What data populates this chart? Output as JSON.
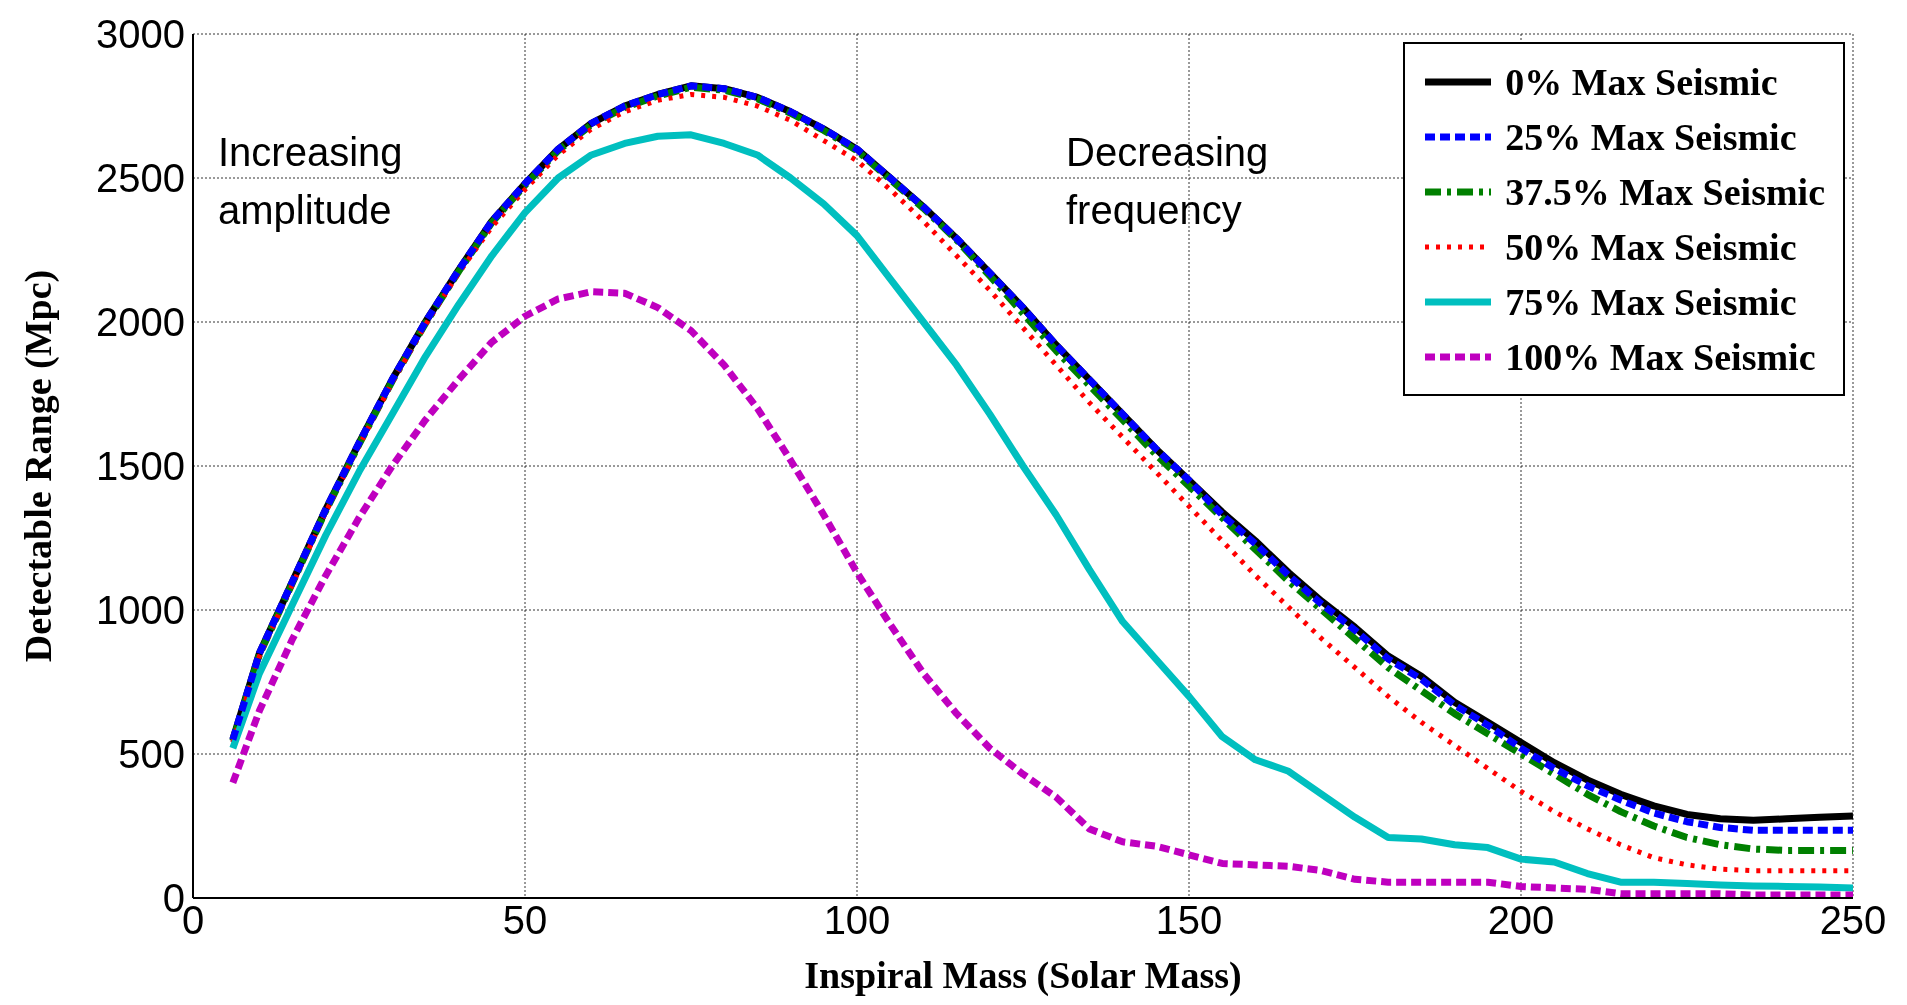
{
  "chart_data": {
    "type": "line",
    "xlabel": "Inspiral Mass (Solar Mass)",
    "ylabel": "Detectable Range (Mpc)",
    "annotations": [
      "Increasing amplitude",
      "Decreasing frequency"
    ],
    "x": [
      6,
      10,
      15,
      20,
      25,
      30,
      35,
      40,
      45,
      50,
      55,
      60,
      65,
      70,
      75,
      80,
      85,
      90,
      95,
      100,
      105,
      110,
      115,
      120,
      125,
      130,
      135,
      140,
      145,
      150,
      155,
      160,
      165,
      170,
      175,
      180,
      185,
      190,
      195,
      200,
      205,
      210,
      215,
      220,
      225,
      230,
      235,
      240,
      245,
      250
    ],
    "xlim": [
      0,
      250
    ],
    "xticks": [
      0,
      50,
      100,
      150,
      200,
      250
    ],
    "ylim": [
      0,
      3000
    ],
    "yticks": [
      0,
      500,
      1000,
      1500,
      2000,
      2500,
      3000
    ],
    "grid": true,
    "legend": "top right",
    "marker": "none",
    "series": [
      {
        "name": "0% Max Seismic",
        "color": "#000000",
        "line_style": "solid",
        "values": [
          550,
          850,
          1100,
          1350,
          1580,
          1800,
          2000,
          2180,
          2350,
          2480,
          2600,
          2690,
          2750,
          2790,
          2820,
          2810,
          2780,
          2730,
          2670,
          2600,
          2500,
          2400,
          2290,
          2170,
          2050,
          1920,
          1800,
          1680,
          1560,
          1450,
          1340,
          1240,
          1130,
          1030,
          940,
          840,
          770,
          680,
          610,
          540,
          470,
          410,
          360,
          320,
          290,
          275,
          270,
          275,
          280,
          285
        ]
      },
      {
        "name": "25% Max Seismic",
        "color": "#0000ff",
        "line_style": "dashed",
        "values": [
          550,
          850,
          1100,
          1350,
          1580,
          1800,
          2000,
          2180,
          2350,
          2480,
          2600,
          2690,
          2750,
          2790,
          2820,
          2810,
          2780,
          2730,
          2670,
          2600,
          2500,
          2400,
          2290,
          2170,
          2050,
          1920,
          1800,
          1680,
          1560,
          1450,
          1330,
          1230,
          1120,
          1020,
          930,
          830,
          760,
          670,
          600,
          520,
          450,
          390,
          340,
          295,
          265,
          245,
          235,
          235,
          235,
          235
        ]
      },
      {
        "name": "37.5% Max Seismic",
        "color": "#008000",
        "line_style": "dashdot",
        "values": [
          545,
          845,
          1095,
          1345,
          1575,
          1795,
          1995,
          2175,
          2345,
          2475,
          2595,
          2685,
          2745,
          2785,
          2815,
          2805,
          2775,
          2725,
          2665,
          2595,
          2495,
          2395,
          2285,
          2160,
          2030,
          1900,
          1780,
          1660,
          1540,
          1430,
          1320,
          1210,
          1100,
          1000,
          900,
          800,
          720,
          640,
          570,
          500,
          430,
          360,
          300,
          250,
          210,
          185,
          170,
          165,
          165,
          165
        ]
      },
      {
        "name": "50% Max Seismic",
        "color": "#ff0000",
        "line_style": "dotted",
        "values": [
          540,
          840,
          1090,
          1340,
          1570,
          1790,
          1990,
          2170,
          2330,
          2460,
          2580,
          2670,
          2730,
          2770,
          2790,
          2780,
          2750,
          2700,
          2630,
          2560,
          2460,
          2350,
          2230,
          2110,
          1980,
          1850,
          1720,
          1600,
          1480,
          1360,
          1240,
          1120,
          1010,
          900,
          800,
          700,
          610,
          530,
          450,
          370,
          300,
          240,
          185,
          140,
          115,
          100,
          95,
          95,
          95,
          95
        ]
      },
      {
        "name": "75% Max Seismic",
        "color": "#00bfbf",
        "line_style": "solid",
        "values": [
          520,
          780,
          1020,
          1260,
          1480,
          1680,
          1880,
          2060,
          2230,
          2380,
          2500,
          2580,
          2620,
          2645,
          2650,
          2620,
          2580,
          2500,
          2410,
          2300,
          2150,
          2000,
          1850,
          1680,
          1500,
          1330,
          1140,
          960,
          830,
          700,
          560,
          480,
          440,
          360,
          280,
          210,
          205,
          185,
          175,
          135,
          125,
          85,
          55,
          55,
          50,
          45,
          42,
          40,
          38,
          35
        ]
      },
      {
        "name": "100% Max Seismic",
        "color": "#bf00bf",
        "line_style": "dashed",
        "values": [
          400,
          650,
          900,
          1120,
          1320,
          1500,
          1660,
          1800,
          1930,
          2020,
          2080,
          2105,
          2100,
          2050,
          1970,
          1850,
          1700,
          1520,
          1330,
          1130,
          950,
          780,
          640,
          520,
          430,
          350,
          240,
          195,
          180,
          150,
          120,
          115,
          110,
          95,
          65,
          55,
          55,
          55,
          55,
          40,
          35,
          30,
          15,
          15,
          15,
          15,
          10,
          10,
          10,
          10
        ]
      }
    ]
  }
}
